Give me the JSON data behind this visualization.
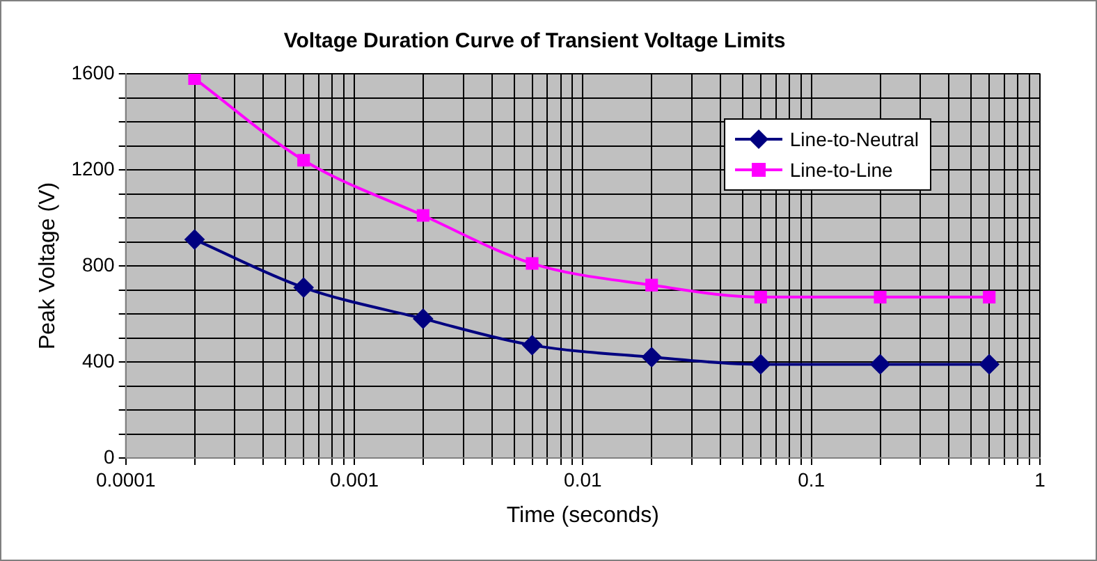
{
  "chart_data": {
    "type": "line",
    "title": "Voltage Duration Curve of Transient Voltage Limits",
    "xlabel": "Time (seconds)",
    "ylabel": "Peak Voltage (V)",
    "x": [
      0.0002,
      0.0006,
      0.002,
      0.006,
      0.02,
      0.06,
      0.2,
      0.6
    ],
    "series": [
      {
        "name": "Line-to-Neutral",
        "color": "#000080",
        "marker": "diamond",
        "values": [
          910,
          710,
          580,
          470,
          420,
          390,
          390,
          390
        ]
      },
      {
        "name": "Line-to-Line",
        "color": "#ff00ff",
        "marker": "square",
        "values": [
          1580,
          1240,
          1010,
          810,
          720,
          670,
          670,
          670
        ]
      }
    ],
    "log": "x",
    "xlim": [
      0.0001,
      1
    ],
    "xticks": [
      0.0001,
      {
        "value": 0.0002,
        "label": null
      },
      {
        "value": 0.0003,
        "label": null
      },
      {
        "value": 0.0004,
        "label": null
      },
      {
        "value": 0.0005,
        "label": null
      },
      {
        "value": 0.0006,
        "label": null
      },
      {
        "value": 0.0007,
        "label": null
      },
      {
        "value": 0.0008,
        "label": null
      },
      {
        "value": 0.0009,
        "label": null
      },
      0.001,
      {
        "value": 0.002,
        "label": null
      },
      {
        "value": 0.003,
        "label": null
      },
      {
        "value": 0.004,
        "label": null
      },
      {
        "value": 0.005,
        "label": null
      },
      {
        "value": 0.006,
        "label": null
      },
      {
        "value": 0.007,
        "label": null
      },
      {
        "value": 0.008,
        "label": null
      },
      {
        "value": 0.009,
        "label": null
      },
      0.01,
      {
        "value": 0.02,
        "label": null
      },
      {
        "value": 0.03,
        "label": null
      },
      {
        "value": 0.04,
        "label": null
      },
      {
        "value": 0.05,
        "label": null
      },
      {
        "value": 0.06,
        "label": null
      },
      {
        "value": 0.07,
        "label": null
      },
      {
        "value": 0.08,
        "label": null
      },
      {
        "value": 0.09,
        "label": null
      },
      0.1,
      {
        "value": 0.2,
        "label": null
      },
      {
        "value": 0.3,
        "label": null
      },
      {
        "value": 0.4,
        "label": null
      },
      {
        "value": 0.5,
        "label": null
      },
      {
        "value": 0.6,
        "label": null
      },
      {
        "value": 0.7,
        "label": null
      },
      {
        "value": 0.8,
        "label": null
      },
      {
        "value": 0.9,
        "label": null
      },
      1
    ],
    "ylim": [
      0,
      1600
    ],
    "yticks": [
      0,
      {
        "value": 100,
        "label": null
      },
      {
        "value": 200,
        "label": null
      },
      {
        "value": 300,
        "label": null
      },
      400,
      {
        "value": 500,
        "label": null
      },
      {
        "value": 600,
        "label": null
      },
      {
        "value": 700,
        "label": null
      },
      800,
      {
        "value": 900,
        "label": null
      },
      {
        "value": 1000,
        "label": null
      },
      {
        "value": 1100,
        "label": null
      },
      1200,
      {
        "value": 1300,
        "label": null
      },
      {
        "value": 1400,
        "label": null
      },
      {
        "value": 1500,
        "label": null
      },
      1600
    ],
    "grid": true,
    "legend": "top right",
    "line_style": "solid"
  }
}
